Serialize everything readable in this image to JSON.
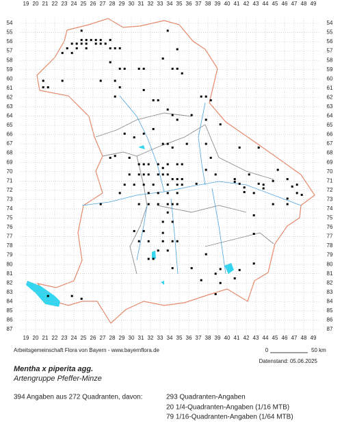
{
  "map": {
    "column_labels": [
      19,
      20,
      21,
      22,
      23,
      24,
      25,
      26,
      27,
      28,
      29,
      30,
      31,
      32,
      33,
      34,
      35,
      36,
      37,
      38,
      39,
      40,
      41,
      42,
      43,
      44,
      45,
      46,
      47,
      48,
      49
    ],
    "row_labels": [
      54,
      55,
      56,
      57,
      58,
      59,
      60,
      61,
      62,
      63,
      64,
      65,
      66,
      67,
      68,
      69,
      70,
      71,
      72,
      73,
      74,
      75,
      76,
      77,
      78,
      79,
      80,
      81,
      82,
      83,
      84,
      85,
      86,
      87
    ],
    "records": [
      [
        24.8,
        54.8
      ],
      [
        24.8,
        55.8
      ],
      [
        25.3,
        55.8
      ],
      [
        25.8,
        55.8
      ],
      [
        26.3,
        55.8
      ],
      [
        26.8,
        55.8
      ],
      [
        27.8,
        55.8
      ],
      [
        23.8,
        56.2
      ],
      [
        24.3,
        56.2
      ],
      [
        24.8,
        56.2
      ],
      [
        25.3,
        56.2
      ],
      [
        26.3,
        56.2
      ],
      [
        26.8,
        56.2
      ],
      [
        27.3,
        56.2
      ],
      [
        27.8,
        56.7
      ],
      [
        28.3,
        56.7
      ],
      [
        28.8,
        56.7
      ],
      [
        25.3,
        56.7
      ],
      [
        24.3,
        56.7
      ],
      [
        23.3,
        56.7
      ],
      [
        23.8,
        57.2
      ],
      [
        22.8,
        57.2
      ],
      [
        27.8,
        58.2
      ],
      [
        28.8,
        58.9
      ],
      [
        29.3,
        58.9
      ],
      [
        30.8,
        58.9
      ],
      [
        31.3,
        58.9
      ],
      [
        34.3,
        58.9
      ],
      [
        34.8,
        58.9
      ],
      [
        35.3,
        59.4
      ],
      [
        33.3,
        57.8
      ],
      [
        33.8,
        54.8
      ],
      [
        34.8,
        56.8
      ],
      [
        20.8,
        60.2
      ],
      [
        20.8,
        60.9
      ],
      [
        21.3,
        60.9
      ],
      [
        22.8,
        60.2
      ],
      [
        26.8,
        60.2
      ],
      [
        28.3,
        60.2
      ],
      [
        28.8,
        60.9
      ],
      [
        28.3,
        61.9
      ],
      [
        31.3,
        61.2
      ],
      [
        32.3,
        62.3
      ],
      [
        32.8,
        62.3
      ],
      [
        33.8,
        63.3
      ],
      [
        34.3,
        63.9
      ],
      [
        34.8,
        64.4
      ],
      [
        36.3,
        63.9
      ],
      [
        37.3,
        61.9
      ],
      [
        37.8,
        61.9
      ],
      [
        38.3,
        62.3
      ],
      [
        37.8,
        64.4
      ],
      [
        39.3,
        64.9
      ],
      [
        29.3,
        65.9
      ],
      [
        30.3,
        66.3
      ],
      [
        31.3,
        65.9
      ],
      [
        32.3,
        65.4
      ],
      [
        33.3,
        67.0
      ],
      [
        33.8,
        67.0
      ],
      [
        34.3,
        67.4
      ],
      [
        35.8,
        67.0
      ],
      [
        37.8,
        67.0
      ],
      [
        28.3,
        68.3
      ],
      [
        27.8,
        68.5
      ],
      [
        29.8,
        68.5
      ],
      [
        30.8,
        69.2
      ],
      [
        31.3,
        69.2
      ],
      [
        31.8,
        69.2
      ],
      [
        32.8,
        69.2
      ],
      [
        33.3,
        69.6
      ],
      [
        33.8,
        69.2
      ],
      [
        34.8,
        69.2
      ],
      [
        35.3,
        69.2
      ],
      [
        29.8,
        70.3
      ],
      [
        30.8,
        70.3
      ],
      [
        31.3,
        70.3
      ],
      [
        31.8,
        70.3
      ],
      [
        32.8,
        70.3
      ],
      [
        33.3,
        70.3
      ],
      [
        33.8,
        70.3
      ],
      [
        34.3,
        70.8
      ],
      [
        34.8,
        70.8
      ],
      [
        35.3,
        70.8
      ],
      [
        29.3,
        71.4
      ],
      [
        30.3,
        71.4
      ],
      [
        31.3,
        71.4
      ],
      [
        32.3,
        71.4
      ],
      [
        33.8,
        71.4
      ],
      [
        34.8,
        71.4
      ],
      [
        35.3,
        71.4
      ],
      [
        36.8,
        71.3
      ],
      [
        28.8,
        72.3
      ],
      [
        31.8,
        72.3
      ],
      [
        32.8,
        72.3
      ],
      [
        33.8,
        72.3
      ],
      [
        34.8,
        72.3
      ],
      [
        26.8,
        73.5
      ],
      [
        30.8,
        73.5
      ],
      [
        31.8,
        73.5
      ],
      [
        32.8,
        73.5
      ],
      [
        33.8,
        73.5
      ],
      [
        34.3,
        73.5
      ],
      [
        34.8,
        73.5
      ],
      [
        33.8,
        74.4
      ],
      [
        33.3,
        75.4
      ],
      [
        34.3,
        75.4
      ],
      [
        33.3,
        76.6
      ],
      [
        30.3,
        76.4
      ],
      [
        31.3,
        76.4
      ],
      [
        34.8,
        77.5
      ],
      [
        30.8,
        77.5
      ],
      [
        31.8,
        77.5
      ],
      [
        33.3,
        77.5
      ],
      [
        34.3,
        77.5
      ],
      [
        32.8,
        78.5
      ],
      [
        33.8,
        78.5
      ],
      [
        31.8,
        79.4
      ],
      [
        32.3,
        79.4
      ],
      [
        34.3,
        80.4
      ],
      [
        36.3,
        80.4
      ],
      [
        37.8,
        78.9
      ],
      [
        37.3,
        81.7
      ],
      [
        38.8,
        81.0
      ],
      [
        39.3,
        80.5
      ],
      [
        40.8,
        71.1
      ],
      [
        41.3,
        67.4
      ],
      [
        41.3,
        71.3
      ],
      [
        41.8,
        71.7
      ],
      [
        42.3,
        70.3
      ],
      [
        43.3,
        71.3
      ],
      [
        43.8,
        71.4
      ],
      [
        44.8,
        71.0
      ],
      [
        45.3,
        69.8
      ],
      [
        46.3,
        70.8
      ],
      [
        46.8,
        71.6
      ],
      [
        47.3,
        71.4
      ],
      [
        47.3,
        72.3
      ],
      [
        47.8,
        72.5
      ],
      [
        46.3,
        72.9
      ],
      [
        46.3,
        73.5
      ],
      [
        42.8,
        74.7
      ],
      [
        42.8,
        76.7
      ],
      [
        44.8,
        73.5
      ],
      [
        43.8,
        71.8
      ],
      [
        42.8,
        72.3
      ],
      [
        41.8,
        72.2
      ],
      [
        43.3,
        67.4
      ],
      [
        40.8,
        70.8
      ],
      [
        38.8,
        70.3
      ],
      [
        37.8,
        69.8
      ],
      [
        38.3,
        68.5
      ],
      [
        21.3,
        83.4
      ],
      [
        23.8,
        83.4
      ],
      [
        24.8,
        83.7
      ],
      [
        39.3,
        82.0
      ],
      [
        40.8,
        81.5
      ],
      [
        41.3,
        80.6
      ],
      [
        42.8,
        79.9
      ],
      [
        38.8,
        83.2
      ]
    ]
  },
  "credit": "Arbeitsgemeinschaft Flora von Bayern - www.bayernflora.de",
  "scale": {
    "start": "0",
    "end": "50 km"
  },
  "date": "Datenstand: 05.06.2025",
  "title": "Mentha x piperita agg.",
  "subtitle": "Artengruppe Pfeffer-Minze",
  "summary": "394 Angaben aus 272 Quadranten, davon:",
  "breakdown": [
    "293 Quadranten-Angaben",
    "20 1/4-Quadranten-Angaben (1/16 MTB)",
    "79 1/16-Quadranten-Angaben (1/64 MTB)"
  ]
}
